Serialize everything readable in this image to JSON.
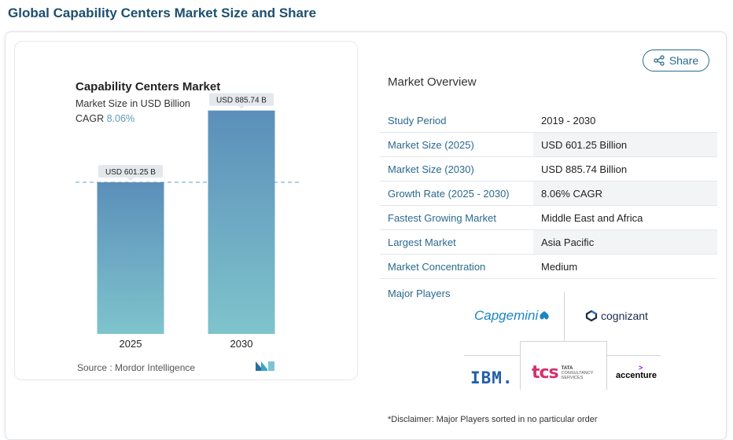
{
  "page": {
    "title": "Global Capability Centers Market Size and Share"
  },
  "chart_card": {
    "title": "Capability Centers Market",
    "subtitle": "Market Size in USD Billion",
    "cagr_label": "CAGR",
    "cagr_value": "8.06%",
    "source": "Source :  Mordor Intelligence"
  },
  "chart_data": {
    "type": "bar",
    "title": "Capability Centers Market",
    "subtitle": "Market Size in USD Billion",
    "categories": [
      "2025",
      "2030"
    ],
    "values": [
      601.25,
      885.74
    ],
    "data_labels": [
      "USD 601.25 B",
      "USD 885.74 B"
    ],
    "ylabel": "",
    "xlabel": "",
    "ylim": [
      0,
      1000
    ],
    "reference_line": 601.25,
    "grid": false,
    "colors": {
      "bar_top": "#5b8fba",
      "bar_bottom": "#7fc4cc",
      "label_bg": "#e4e8ec",
      "ref_line": "#7fb5c9"
    }
  },
  "share": {
    "label": "Share",
    "icon": "share-icon"
  },
  "overview": {
    "title": "Market Overview",
    "rows": [
      {
        "key": "Study Period",
        "value": "2019 - 2030"
      },
      {
        "key": "Market Size (2025)",
        "value": "USD 601.25 Billion"
      },
      {
        "key": "Market Size (2030)",
        "value": "USD 885.74 Billion"
      },
      {
        "key": "Growth Rate (2025 - 2030)",
        "value": "8.06% CAGR"
      },
      {
        "key": "Fastest Growing Market",
        "value": "Middle East and Africa"
      },
      {
        "key": "Largest Market",
        "value": "Asia Pacific"
      },
      {
        "key": "Market Concentration",
        "value": "Medium"
      }
    ]
  },
  "players": {
    "title": "Major Players",
    "capgemini": "Capgemini",
    "cognizant": "cognizant",
    "ibm": "IBM.",
    "tcs_mark": "tcs",
    "tcs_line1": "TATA",
    "tcs_line2": "CONSULTANCY",
    "tcs_line3": "SERVICES",
    "accenture": "accenture"
  },
  "disclaimer": "*Disclaimer: Major Players sorted in no particular order",
  "colors": {
    "accent": "#2a6a8e",
    "title": "#1d4f6e"
  }
}
